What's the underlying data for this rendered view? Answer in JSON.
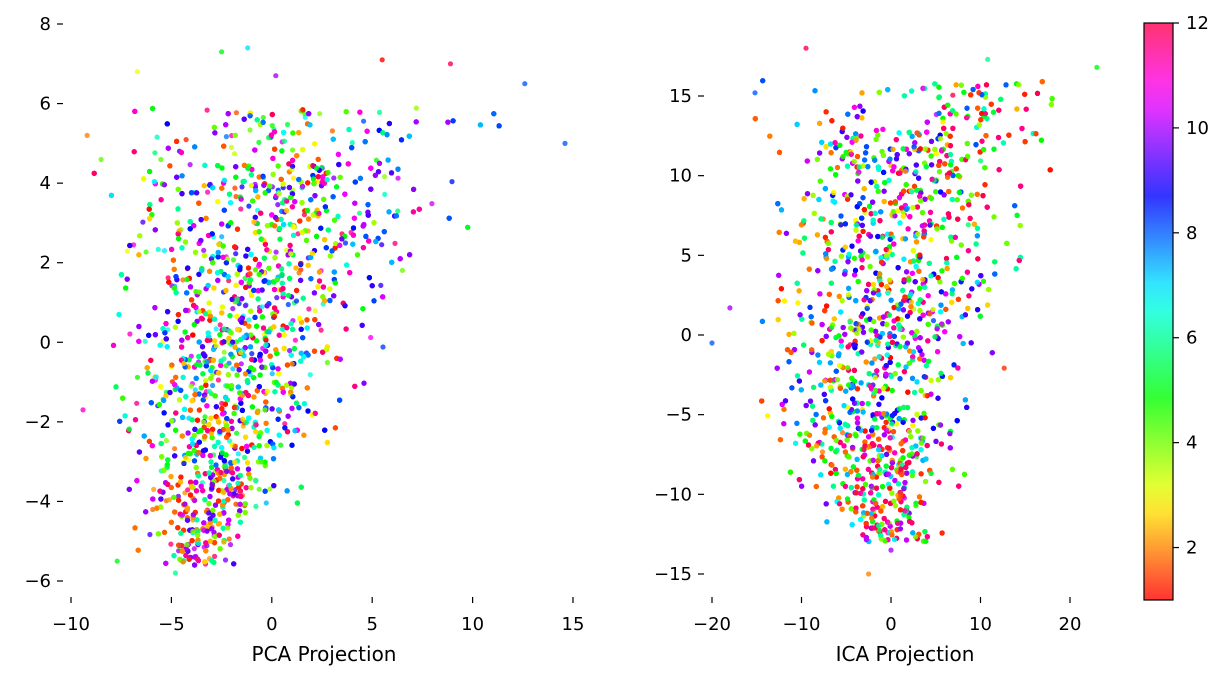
{
  "chart_data": [
    {
      "type": "scatter",
      "title": "",
      "xlabel": "PCA Projection",
      "ylabel": "",
      "xlim": [
        -10,
        15
      ],
      "ylim": [
        -6,
        8
      ],
      "x_ticks": [
        -10,
        -5,
        0,
        5,
        10,
        15
      ],
      "x_tick_labels": [
        "−10",
        "−5",
        "0",
        "5",
        "10",
        "15"
      ],
      "y_ticks": [
        -6,
        -4,
        -2,
        0,
        2,
        4,
        6,
        8
      ],
      "y_tick_labels": [
        "−6",
        "−4",
        "−2",
        "0",
        "2",
        "4",
        "6",
        "8"
      ],
      "grid": false,
      "legend": "none",
      "color_by": "value 1–12 (hsv colormap)",
      "visible_outliers": [
        {
          "x": -9.2,
          "y": 5.2,
          "c": 2
        },
        {
          "x": -9.4,
          "y": -1.7,
          "c": 11
        },
        {
          "x": 14.6,
          "y": 5.0,
          "c": 8
        },
        {
          "x": 5.5,
          "y": 7.1,
          "c": 1
        },
        {
          "x": 8.9,
          "y": 7.0,
          "c": 12
        },
        {
          "x": -1.2,
          "y": 7.4,
          "c": 7
        },
        {
          "x": -2.5,
          "y": 7.3,
          "c": 5
        },
        {
          "x": -6.7,
          "y": 6.8,
          "c": 3
        },
        {
          "x": 0.2,
          "y": 6.7,
          "c": 10
        },
        {
          "x": 12.6,
          "y": 6.5,
          "c": 8
        },
        {
          "x": -4.8,
          "y": -5.8,
          "c": 6
        },
        {
          "x": -7.7,
          "y": -5.5,
          "c": 5
        }
      ]
    },
    {
      "type": "scatter",
      "title": "",
      "xlabel": "ICA Projection",
      "ylabel": "",
      "xlim": [
        -20,
        24
      ],
      "ylim": [
        -16.5,
        18.5
      ],
      "x_ticks": [
        -20,
        -10,
        0,
        10,
        20
      ],
      "x_tick_labels": [
        "−20",
        "−10",
        "0",
        "10",
        "20"
      ],
      "y_ticks": [
        -15,
        -10,
        -5,
        0,
        5,
        10,
        15
      ],
      "y_tick_labels": [
        "−15",
        "−10",
        "−5",
        "0",
        "5",
        "10",
        "15"
      ],
      "grid": false,
      "legend": "none",
      "color_by": "value 1–12 (hsv colormap)",
      "visible_outliers": [
        {
          "x": -20,
          "y": -0.5,
          "c": 8
        },
        {
          "x": -9.5,
          "y": 18.0,
          "c": 12
        },
        {
          "x": 23.0,
          "y": 16.8,
          "c": 5
        },
        {
          "x": 10.8,
          "y": 17.3,
          "c": 6
        },
        {
          "x": -2.5,
          "y": -15.0,
          "c": 2
        },
        {
          "x": 0,
          "y": -13.5,
          "c": 10
        },
        {
          "x": -18,
          "y": 1.7,
          "c": 10
        },
        {
          "x": -15.2,
          "y": 15.2,
          "c": 8
        }
      ]
    }
  ],
  "colorbar": {
    "range": [
      1,
      12
    ],
    "ticks": [
      2,
      4,
      6,
      8,
      10,
      12
    ],
    "colormap": "hsv",
    "alpha": 0.8
  }
}
